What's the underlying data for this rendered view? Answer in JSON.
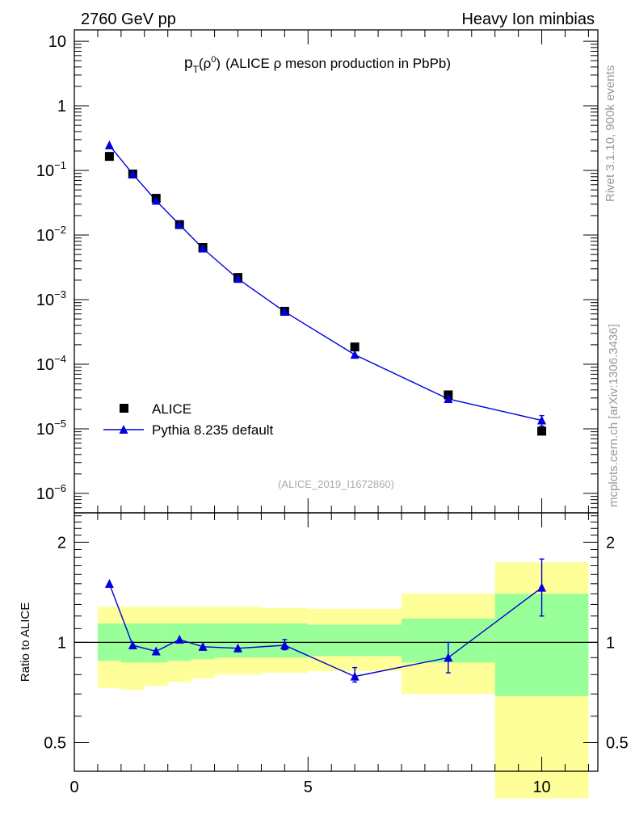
{
  "header": {
    "left": "2760 GeV pp",
    "right": "Heavy Ion minbias"
  },
  "title": {
    "observable_main": "p",
    "observable_sub": "T",
    "observable_arg": "(ρ",
    "observable_sup": "0",
    "observable_close": ")",
    "description": "(ALICE ρ meson production in PbPb)"
  },
  "side_labels": {
    "rivet": "Rivet 3.1.10,  900k events",
    "mcplots": "mcplots.cern.ch [arXiv:1306.3436]"
  },
  "analysis_id": "(ALICE_2019_I1672860)",
  "ratio_ylabel": "Ratio to ALICE",
  "colors": {
    "data": "#000000",
    "mc": "#0000dd",
    "band_inner": "#99ff99",
    "band_outer": "#ffff99"
  },
  "chart_data": [
    {
      "type": "scatter",
      "panel": "main",
      "yscale": "log",
      "xlim": [
        0,
        11.2
      ],
      "ylim": [
        5e-07,
        15
      ],
      "ytick_labels": [
        "10",
        "1",
        "10-1",
        "10-2",
        "10-3",
        "10-4",
        "10-5",
        "10-6"
      ],
      "legend_position": "lower-left",
      "series": [
        {
          "name": "ALICE",
          "marker": "square",
          "x": [
            0.75,
            1.25,
            1.75,
            2.25,
            2.75,
            3.5,
            4.5,
            6.0,
            8.0,
            10.0
          ],
          "y": [
            0.165,
            0.088,
            0.037,
            0.0145,
            0.0064,
            0.0022,
            0.00066,
            0.000185,
            3.35e-05,
            9.2e-06
          ]
        },
        {
          "name": "Pythia 8.235 default",
          "marker": "triangle",
          "line": true,
          "x": [
            0.75,
            1.25,
            1.75,
            2.25,
            2.75,
            3.5,
            4.5,
            6.0,
            8.0,
            10.0
          ],
          "y": [
            0.245,
            0.088,
            0.034,
            0.0145,
            0.0062,
            0.0021,
            0.00065,
            0.00014,
            2.9e-05,
            1.35e-05
          ],
          "yerr": [
            0,
            0,
            0,
            0,
            0,
            0,
            0,
            0,
            2.5e-06,
            2.5e-06
          ]
        }
      ]
    },
    {
      "type": "scatter",
      "panel": "ratio",
      "yscale": "log",
      "xlim": [
        0,
        11.2
      ],
      "ylim": [
        0.41,
        2.45
      ],
      "xticks": [
        0,
        5,
        10
      ],
      "yticks": [
        0.5,
        1,
        2
      ],
      "bins": [
        {
          "lo": 0.5,
          "hi": 1.0,
          "inner": [
            0.88,
            1.14
          ],
          "outer": [
            0.73,
            1.28
          ]
        },
        {
          "lo": 1.0,
          "hi": 1.5,
          "inner": [
            0.87,
            1.14
          ],
          "outer": [
            0.72,
            1.28
          ]
        },
        {
          "lo": 1.5,
          "hi": 2.0,
          "inner": [
            0.87,
            1.14
          ],
          "outer": [
            0.74,
            1.28
          ]
        },
        {
          "lo": 2.0,
          "hi": 2.5,
          "inner": [
            0.88,
            1.14
          ],
          "outer": [
            0.76,
            1.28
          ]
        },
        {
          "lo": 2.5,
          "hi": 3.0,
          "inner": [
            0.89,
            1.14
          ],
          "outer": [
            0.78,
            1.28
          ]
        },
        {
          "lo": 3.0,
          "hi": 4.0,
          "inner": [
            0.9,
            1.14
          ],
          "outer": [
            0.8,
            1.28
          ]
        },
        {
          "lo": 4.0,
          "hi": 5.0,
          "inner": [
            0.9,
            1.14
          ],
          "outer": [
            0.81,
            1.27
          ]
        },
        {
          "lo": 5.0,
          "hi": 7.0,
          "inner": [
            0.91,
            1.13
          ],
          "outer": [
            0.82,
            1.26
          ]
        },
        {
          "lo": 7.0,
          "hi": 9.0,
          "inner": [
            0.87,
            1.18
          ],
          "outer": [
            0.7,
            1.4
          ]
        },
        {
          "lo": 9.0,
          "hi": 11.0,
          "inner": [
            0.69,
            1.4
          ],
          "outer": [
            0.34,
            1.74
          ]
        }
      ],
      "series": [
        {
          "name": "Pythia 8.235 default",
          "x": [
            0.75,
            1.25,
            1.75,
            2.25,
            2.75,
            3.5,
            4.5,
            6.0,
            8.0,
            10.0
          ],
          "y": [
            1.5,
            0.98,
            0.94,
            1.02,
            0.97,
            0.96,
            0.98,
            0.79,
            0.9,
            1.46
          ],
          "ylo": [
            1.5,
            0.98,
            0.94,
            1.02,
            0.97,
            0.96,
            0.95,
            0.76,
            0.81,
            1.2
          ],
          "yhi": [
            1.5,
            0.98,
            0.94,
            1.02,
            0.97,
            0.96,
            1.02,
            0.84,
            1.0,
            1.78
          ]
        }
      ]
    }
  ]
}
